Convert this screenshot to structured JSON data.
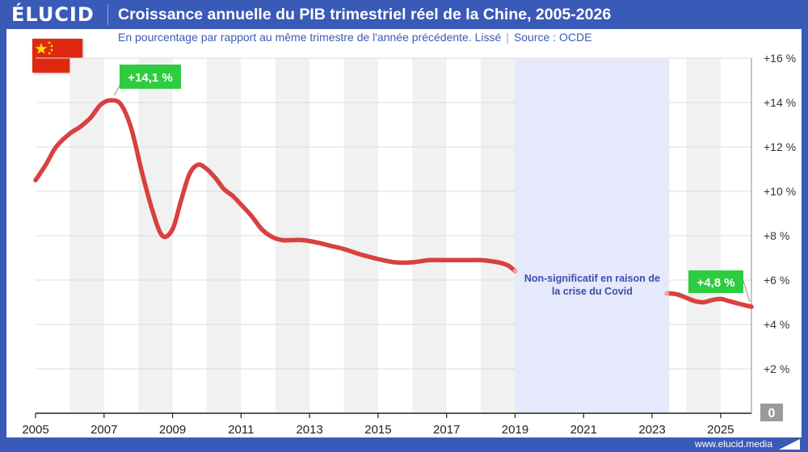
{
  "header": {
    "logo": "ÉLUCID",
    "title": "Croissance annuelle du PIB trimestriel réel de la Chine, 2005-2026",
    "subtitle": "En pourcentage par rapport au même trimestre de l'année précédente. Lissé",
    "separator": "|",
    "source": "Source : OCDE"
  },
  "footer": {
    "url": "www.elucid.media"
  },
  "flag": {
    "icon": "china-flag-icon",
    "color": "#de2910",
    "star_color": "#ffde00"
  },
  "colors": {
    "brand": "#3a5ab8",
    "line": "#d94040",
    "covid_band": "#e6e8fb",
    "callout": "#2ecc40"
  },
  "chart_data": {
    "type": "line",
    "title": "Croissance annuelle du PIB trimestriel réel de la Chine, 2005-2026",
    "subtitle": "En pourcentage par rapport au même trimestre de l'année précédente. Lissé",
    "xlabel": "",
    "ylabel": "",
    "xlim": [
      2005,
      2025.9
    ],
    "ylim": [
      0,
      16
    ],
    "x_ticks": [
      2005,
      2007,
      2009,
      2011,
      2013,
      2015,
      2017,
      2019,
      2021,
      2023,
      2025
    ],
    "y_ticks": [
      {
        "value": 2,
        "label": "+2 %"
      },
      {
        "value": 4,
        "label": "+4 %"
      },
      {
        "value": 6,
        "label": "+6 %"
      },
      {
        "value": 8,
        "label": "+8 %"
      },
      {
        "value": 10,
        "label": "+10 %"
      },
      {
        "value": 12,
        "label": "+12 %"
      },
      {
        "value": 14,
        "label": "+14 %"
      },
      {
        "value": 16,
        "label": "+16 %"
      }
    ],
    "zero_label": "0",
    "grid": true,
    "series": [
      {
        "segments": [
          {
            "x": [
              2005.0,
              2005.3,
              2005.6,
              2006.0,
              2006.3,
              2006.6,
              2006.9,
              2007.2,
              2007.5,
              2007.8,
              2008.1,
              2008.4,
              2008.7,
              2009.0,
              2009.25,
              2009.5,
              2009.75,
              2010.0,
              2010.25,
              2010.5,
              2010.75,
              2011.0,
              2011.3,
              2011.6,
              2011.9,
              2012.2,
              2012.5,
              2012.8,
              2013.2,
              2013.6,
              2014.0,
              2014.5,
              2015.0,
              2015.5,
              2016.0,
              2016.5,
              2017.0,
              2017.5,
              2018.0,
              2018.5,
              2018.8,
              2019.0
            ],
            "y": [
              10.5,
              11.2,
              12.0,
              12.6,
              12.9,
              13.3,
              13.9,
              14.1,
              13.9,
              12.8,
              10.9,
              9.2,
              8.0,
              8.3,
              9.6,
              10.8,
              11.2,
              11.0,
              10.6,
              10.1,
              9.8,
              9.4,
              8.9,
              8.3,
              7.95,
              7.8,
              7.8,
              7.8,
              7.7,
              7.55,
              7.4,
              7.15,
              6.95,
              6.8,
              6.8,
              6.9,
              6.9,
              6.9,
              6.9,
              6.8,
              6.65,
              6.4
            ]
          },
          {
            "x": [
              2023.5,
              2023.75,
              2024.0,
              2024.25,
              2024.5,
              2024.75,
              2025.0,
              2025.25,
              2025.5,
              2025.75,
              2025.9
            ],
            "y": [
              5.4,
              5.35,
              5.2,
              5.05,
              5.0,
              5.1,
              5.15,
              5.05,
              4.95,
              4.85,
              4.8
            ]
          }
        ]
      }
    ],
    "covid_band": {
      "x": [
        2019.0,
        2023.5
      ],
      "annotation": [
        "Non-significatif en raison de",
        "la crise du Covid"
      ]
    },
    "callouts": [
      {
        "label": "+14,1 %",
        "x": 2007.3,
        "y": 14.1
      },
      {
        "label": "+4,8 %",
        "x": 2025.9,
        "y": 4.8
      }
    ]
  }
}
